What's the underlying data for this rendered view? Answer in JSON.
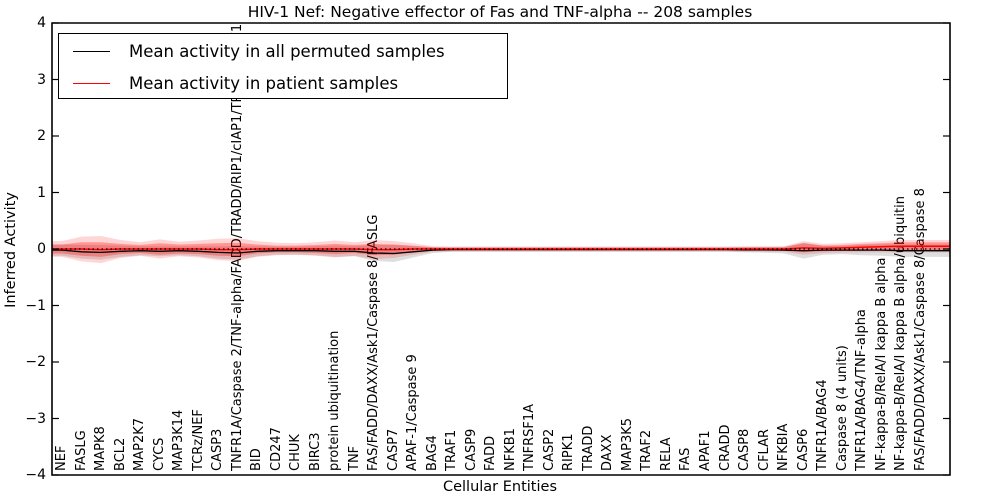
{
  "title": "HIV-1 Nef: Negative effector of Fas and TNF-alpha -- 208 samples",
  "legend": {
    "entries": [
      {
        "label": "Mean activity in all permuted samples",
        "color": "#000000"
      },
      {
        "label": "Mean activity in patient samples",
        "color": "#ff0000"
      }
    ]
  },
  "chart_data": {
    "type": "line",
    "title": "HIV-1 Nef: Negative effector of Fas and TNF-alpha -- 208 samples",
    "xlabel": "Cellular Entities",
    "ylabel": "Inferred Activity",
    "ylim": [
      -4,
      4
    ],
    "yticks": [
      4,
      3,
      2,
      1,
      0,
      -1,
      -2,
      -3,
      -4
    ],
    "grid": false,
    "legend_position": "upper left",
    "baseline": {
      "value": 0,
      "style": "dotted",
      "color": "#000000"
    },
    "colors": {
      "permuted_line": "#000000",
      "patient_line": "#ff0000",
      "permuted_band": "rgba(0,0,0,0.13)",
      "patient_band_outer": "rgba(255,0,0,0.16)",
      "patient_band_inner": "rgba(255,0,0,0.30)"
    },
    "categories": [
      "NEF",
      "FASLG",
      "MAPK8",
      "BCL2",
      "MAP2K7",
      "CYCS",
      "MAP3K14",
      "TCRz/NEF",
      "CASP3",
      "TNFR1A/Caspase 2/TNF-alpha/FADD/TRADD/RIP1/cIAP1/TRAF2/TRAF1",
      "BID",
      "CD247",
      "CHUK",
      "BIRC3",
      "protein ubiquitination",
      "TNF",
      "FAS/FADD/DAXX/Ask1/Caspase 8/FASLG",
      "CASP7",
      "APAF-1/Caspase 9",
      "BAG4",
      "TRAF1",
      "CASP9",
      "FADD",
      "NFKB1",
      "TNFRSF1A",
      "CASP2",
      "RIPK1",
      "TRADD",
      "DAXX",
      "MAP3K5",
      "TRAF2",
      "RELA",
      "FAS",
      "APAF1",
      "CRADD",
      "CASP8",
      "CFLAR",
      "NFKBIA",
      "CASP6",
      "TNFR1A/BAG4",
      "Caspase 8 (4 units)",
      "TNFR1A/BAG4/TNF-alpha",
      "NF-kappa-B/RelA/I kappa B alpha",
      "NF-kappa-B/RelA/I kappa B alpha/ubiquitin",
      "FAS/FADD/DAXX/Ask1/Caspase 8/Caspase 8"
    ],
    "series": [
      {
        "name": "Mean activity in all permuted samples",
        "color": "#000000",
        "style": "solid",
        "values": [
          -0.02,
          -0.05,
          -0.06,
          -0.04,
          -0.03,
          -0.04,
          -0.03,
          -0.04,
          -0.06,
          -0.07,
          -0.04,
          -0.03,
          -0.03,
          -0.03,
          -0.04,
          -0.04,
          -0.07,
          -0.08,
          -0.05,
          -0.02,
          -0.01,
          -0.01,
          -0.01,
          -0.01,
          -0.01,
          -0.01,
          -0.01,
          -0.01,
          -0.01,
          -0.01,
          -0.01,
          -0.01,
          -0.01,
          -0.01,
          -0.01,
          -0.015,
          -0.015,
          -0.02,
          -0.03,
          -0.02,
          -0.02,
          -0.02,
          -0.02,
          -0.03,
          -0.03
        ]
      },
      {
        "name": "Mean activity in patient samples",
        "color": "#ff0000",
        "style": "solid",
        "values": [
          0,
          0,
          -0.01,
          0,
          0,
          0,
          0,
          0,
          -0.01,
          -0.01,
          0,
          0,
          0,
          0,
          0,
          0,
          -0.01,
          -0.01,
          0,
          0,
          0,
          0,
          0,
          0,
          0,
          0,
          0,
          0,
          0,
          0,
          0,
          0,
          0,
          0,
          0,
          0,
          0,
          0,
          0.02,
          0.01,
          0.02,
          0.03,
          0.04,
          0.05,
          0.05
        ]
      }
    ],
    "bands": [
      {
        "name": "permuted-std-band",
        "center_series": 0,
        "color": "#000000",
        "opacity": 0.13,
        "halfwidths": [
          0.1,
          0.12,
          0.13,
          0.1,
          0.08,
          0.09,
          0.08,
          0.09,
          0.11,
          0.12,
          0.09,
          0.07,
          0.07,
          0.08,
          0.1,
          0.09,
          0.14,
          0.15,
          0.1,
          0.05,
          0.04,
          0.04,
          0.04,
          0.04,
          0.04,
          0.04,
          0.04,
          0.04,
          0.04,
          0.04,
          0.04,
          0.04,
          0.04,
          0.04,
          0.04,
          0.045,
          0.05,
          0.06,
          0.14,
          0.08,
          0.07,
          0.09,
          0.1,
          0.11,
          0.11
        ]
      },
      {
        "name": "patient-std-band-outer",
        "center_series": 1,
        "color": "#ff0000",
        "opacity": 0.16,
        "halfwidths": [
          0.14,
          0.22,
          0.24,
          0.16,
          0.12,
          0.17,
          0.13,
          0.15,
          0.19,
          0.2,
          0.14,
          0.11,
          0.1,
          0.12,
          0.15,
          0.12,
          0.17,
          0.15,
          0.1,
          0.05,
          0.045,
          0.045,
          0.045,
          0.045,
          0.045,
          0.045,
          0.045,
          0.045,
          0.045,
          0.045,
          0.045,
          0.045,
          0.045,
          0.045,
          0.045,
          0.05,
          0.05,
          0.05,
          0.12,
          0.08,
          0.08,
          0.09,
          0.1,
          0.11,
          0.11
        ]
      },
      {
        "name": "patient-std-band-inner",
        "center_series": 1,
        "color": "#ff0000",
        "opacity": 0.3,
        "halfwidths": [
          0.08,
          0.12,
          0.13,
          0.09,
          0.07,
          0.1,
          0.08,
          0.09,
          0.11,
          0.12,
          0.08,
          0.06,
          0.06,
          0.07,
          0.09,
          0.07,
          0.1,
          0.09,
          0.06,
          0.03,
          0.025,
          0.025,
          0.025,
          0.025,
          0.025,
          0.025,
          0.025,
          0.025,
          0.025,
          0.025,
          0.025,
          0.025,
          0.025,
          0.025,
          0.025,
          0.03,
          0.03,
          0.03,
          0.08,
          0.05,
          0.05,
          0.06,
          0.06,
          0.07,
          0.07
        ]
      }
    ]
  }
}
